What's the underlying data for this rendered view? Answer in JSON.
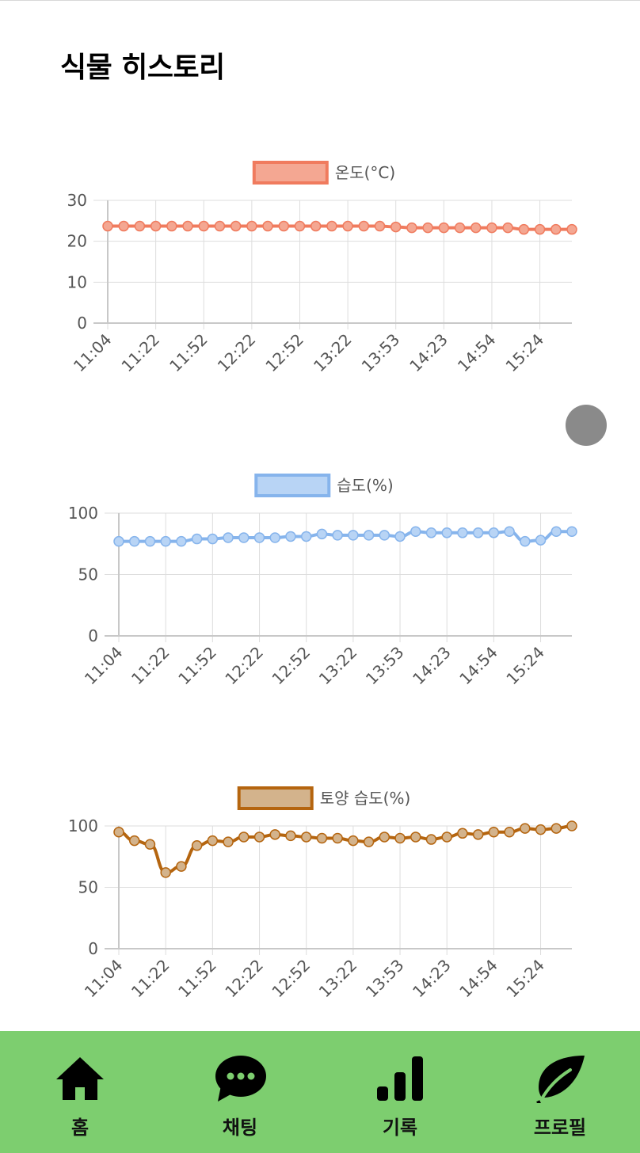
{
  "header": {
    "title": "식물 히스토리"
  },
  "x_labels": [
    "11:04",
    "11:22",
    "11:52",
    "12:22",
    "12:52",
    "13:22",
    "13:53",
    "14:23",
    "14:54",
    "15:24"
  ],
  "chart_data": [
    {
      "type": "line",
      "legend": "온도(°C)",
      "line_color": "#f07b5e",
      "fill_color": "#f4a792",
      "x_tick_labels": [
        "11:04",
        "11:22",
        "11:52",
        "12:22",
        "12:52",
        "13:22",
        "13:53",
        "14:23",
        "14:54",
        "15:24"
      ],
      "ylim": [
        0,
        30
      ],
      "yticks": [
        0,
        10,
        20,
        30
      ],
      "series": [
        {
          "values": [
            23.7,
            23.7,
            23.7,
            23.7,
            23.7,
            23.7,
            23.7,
            23.7,
            23.7,
            23.7,
            23.7,
            23.7,
            23.7,
            23.7,
            23.7,
            23.7,
            23.7,
            23.7,
            23.5,
            23.3,
            23.3,
            23.3,
            23.3,
            23.3,
            23.3,
            23.3,
            22.9,
            22.9,
            22.9,
            22.9
          ]
        }
      ]
    },
    {
      "type": "line",
      "legend": "습도(%)",
      "line_color": "#86b4ec",
      "fill_color": "#b8d4f5",
      "x_tick_labels": [
        "11:04",
        "11:22",
        "11:52",
        "12:22",
        "12:52",
        "13:22",
        "13:53",
        "14:23",
        "14:54",
        "15:24"
      ],
      "ylim": [
        0,
        100
      ],
      "yticks": [
        0,
        50,
        100
      ],
      "series": [
        {
          "values": [
            77,
            77,
            77,
            77,
            77,
            79,
            79,
            80,
            80,
            80,
            80,
            81,
            81,
            83,
            82,
            82,
            82,
            82,
            81,
            85,
            84,
            84,
            84,
            84,
            84,
            85,
            77,
            78,
            85,
            85
          ]
        }
      ]
    },
    {
      "type": "line",
      "legend": "토양 습도(%)",
      "line_color": "#b5650f",
      "fill_color": "#d3b38c",
      "x_tick_labels": [
        "11:04",
        "11:22",
        "11:52",
        "12:22",
        "12:52",
        "13:22",
        "13:53",
        "14:23",
        "14:54",
        "15:24"
      ],
      "ylim": [
        0,
        100
      ],
      "yticks": [
        0,
        50,
        100
      ],
      "series": [
        {
          "values": [
            95,
            88,
            85,
            62,
            67,
            84,
            88,
            87,
            91,
            91,
            93,
            92,
            91,
            90,
            90,
            88,
            87,
            91,
            90,
            91,
            89,
            91,
            94,
            93,
            95,
            95,
            98,
            97,
            98,
            100
          ]
        }
      ]
    }
  ],
  "nav": {
    "items": [
      {
        "label": "홈",
        "icon": "home-icon"
      },
      {
        "label": "채팅",
        "icon": "chat-icon"
      },
      {
        "label": "기록",
        "icon": "bar-chart-icon"
      },
      {
        "label": "프로필",
        "icon": "leaf-icon"
      }
    ]
  }
}
